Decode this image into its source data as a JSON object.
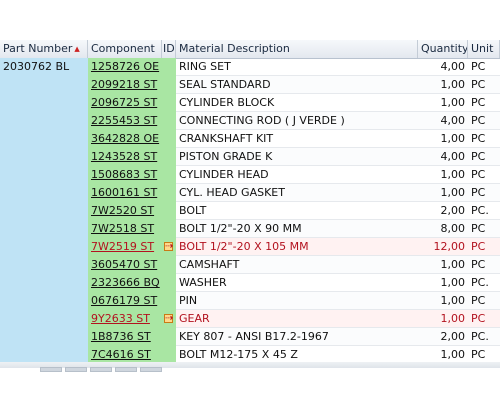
{
  "columns": {
    "part_number": "Part Number",
    "component": "Component",
    "id": "ID",
    "material_description": "Material Description",
    "quantity": "Quantity",
    "unit": "Unit"
  },
  "part_number_value": "2030762 BL",
  "rows": [
    {
      "component": "1258726 OE",
      "description": "RING SET",
      "quantity": "4,00",
      "unit": "PC",
      "flag": ""
    },
    {
      "component": "2099218 ST",
      "description": "SEAL STANDARD",
      "quantity": "1,00",
      "unit": "PC",
      "flag": ""
    },
    {
      "component": "2096725 ST",
      "description": "CYLINDER BLOCK",
      "quantity": "1,00",
      "unit": "PC",
      "flag": ""
    },
    {
      "component": "2255453 ST",
      "description": "CONNECTING ROD ( J VERDE )",
      "quantity": "4,00",
      "unit": "PC",
      "flag": ""
    },
    {
      "component": "3642828 OE",
      "description": "CRANKSHAFT KIT",
      "quantity": "1,00",
      "unit": "PC",
      "flag": ""
    },
    {
      "component": "1243528 ST",
      "description": "PISTON GRADE K",
      "quantity": "4,00",
      "unit": "PC",
      "flag": ""
    },
    {
      "component": "1508683 ST",
      "description": "CYLINDER HEAD",
      "quantity": "1,00",
      "unit": "PC",
      "flag": ""
    },
    {
      "component": "1600161 ST",
      "description": "CYL. HEAD GASKET",
      "quantity": "1,00",
      "unit": "PC",
      "flag": ""
    },
    {
      "component": "7W2520 ST",
      "description": "BOLT",
      "quantity": "2,00",
      "unit": "PC.",
      "flag": ""
    },
    {
      "component": "7W2518 ST",
      "description": "BOLT 1/2\"-20 X 90 MM",
      "quantity": "8,00",
      "unit": "PC",
      "flag": ""
    },
    {
      "component": "7W2519 ST",
      "description": "BOLT 1/2\"-20 X 105 MM",
      "quantity": "12,00",
      "unit": "PC",
      "flag": "subst"
    },
    {
      "component": "3605470 ST",
      "description": "CAMSHAFT",
      "quantity": "1,00",
      "unit": "PC",
      "flag": ""
    },
    {
      "component": "2323666 BQ",
      "description": "WASHER",
      "quantity": "1,00",
      "unit": "PC.",
      "flag": ""
    },
    {
      "component": "0676179 ST",
      "description": "PIN",
      "quantity": "1,00",
      "unit": "PC",
      "flag": ""
    },
    {
      "component": "9Y2633 ST",
      "description": "GEAR",
      "quantity": "1,00",
      "unit": "PC",
      "flag": "subst"
    },
    {
      "component": "1B8736 ST",
      "description": "KEY 807 - ANSI B17.2-1967",
      "quantity": "2,00",
      "unit": "PC.",
      "flag": ""
    },
    {
      "component": "7C4616 ST",
      "description": "BOLT M12-175 X 45 Z",
      "quantity": "1,00",
      "unit": "PC",
      "flag": ""
    }
  ],
  "icons": {
    "sort": "sort-ascending-icon",
    "substitute": "substitute-arrow-icon"
  },
  "colors": {
    "part_bg": "#bfe3f5",
    "component_bg": "#a9e6a3",
    "highlight_text": "#b3121f"
  }
}
